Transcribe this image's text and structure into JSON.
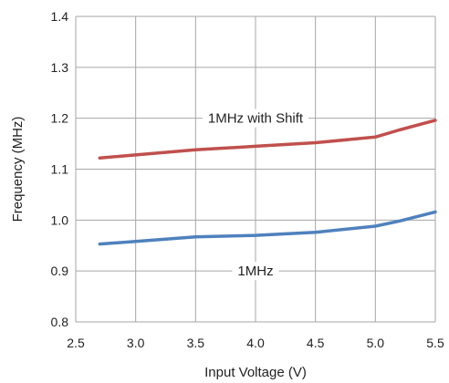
{
  "chart_data": {
    "type": "line",
    "xlabel": "Input Voltage (V)",
    "ylabel": "Frequency (MHz)",
    "xlim": [
      2.5,
      5.5
    ],
    "ylim": [
      0.8,
      1.4
    ],
    "xticks": [
      2.5,
      3.0,
      3.5,
      4.0,
      4.5,
      5.0,
      5.5
    ],
    "yticks": [
      0.8,
      0.9,
      1.0,
      1.1,
      1.2,
      1.3,
      1.4
    ],
    "xtick_labels": [
      "2.5",
      "3.0",
      "3.5",
      "4.0",
      "4.5",
      "5.0",
      "5.5"
    ],
    "ytick_labels": [
      "0.8",
      "0.9",
      "1.0",
      "1.1",
      "1.2",
      "1.3",
      "1.4"
    ],
    "grid": true,
    "series": [
      {
        "name": "1MHz with Shift",
        "color": "#c0504d",
        "x": [
          2.7,
          3.0,
          3.5,
          4.0,
          4.5,
          5.0,
          5.2,
          5.5
        ],
        "y": [
          1.122,
          1.128,
          1.138,
          1.145,
          1.152,
          1.163,
          1.177,
          1.196
        ]
      },
      {
        "name": "1MHz",
        "color": "#4f81bd",
        "x": [
          2.7,
          3.0,
          3.5,
          4.0,
          4.5,
          5.0,
          5.2,
          5.5
        ],
        "y": [
          0.953,
          0.958,
          0.967,
          0.97,
          0.976,
          0.988,
          0.998,
          1.016
        ]
      }
    ],
    "annotations": [
      {
        "text": "1MHz with Shift",
        "x": 4.0,
        "y": 1.2
      },
      {
        "text": "1MHz",
        "x": 4.0,
        "y": 0.9
      }
    ]
  }
}
